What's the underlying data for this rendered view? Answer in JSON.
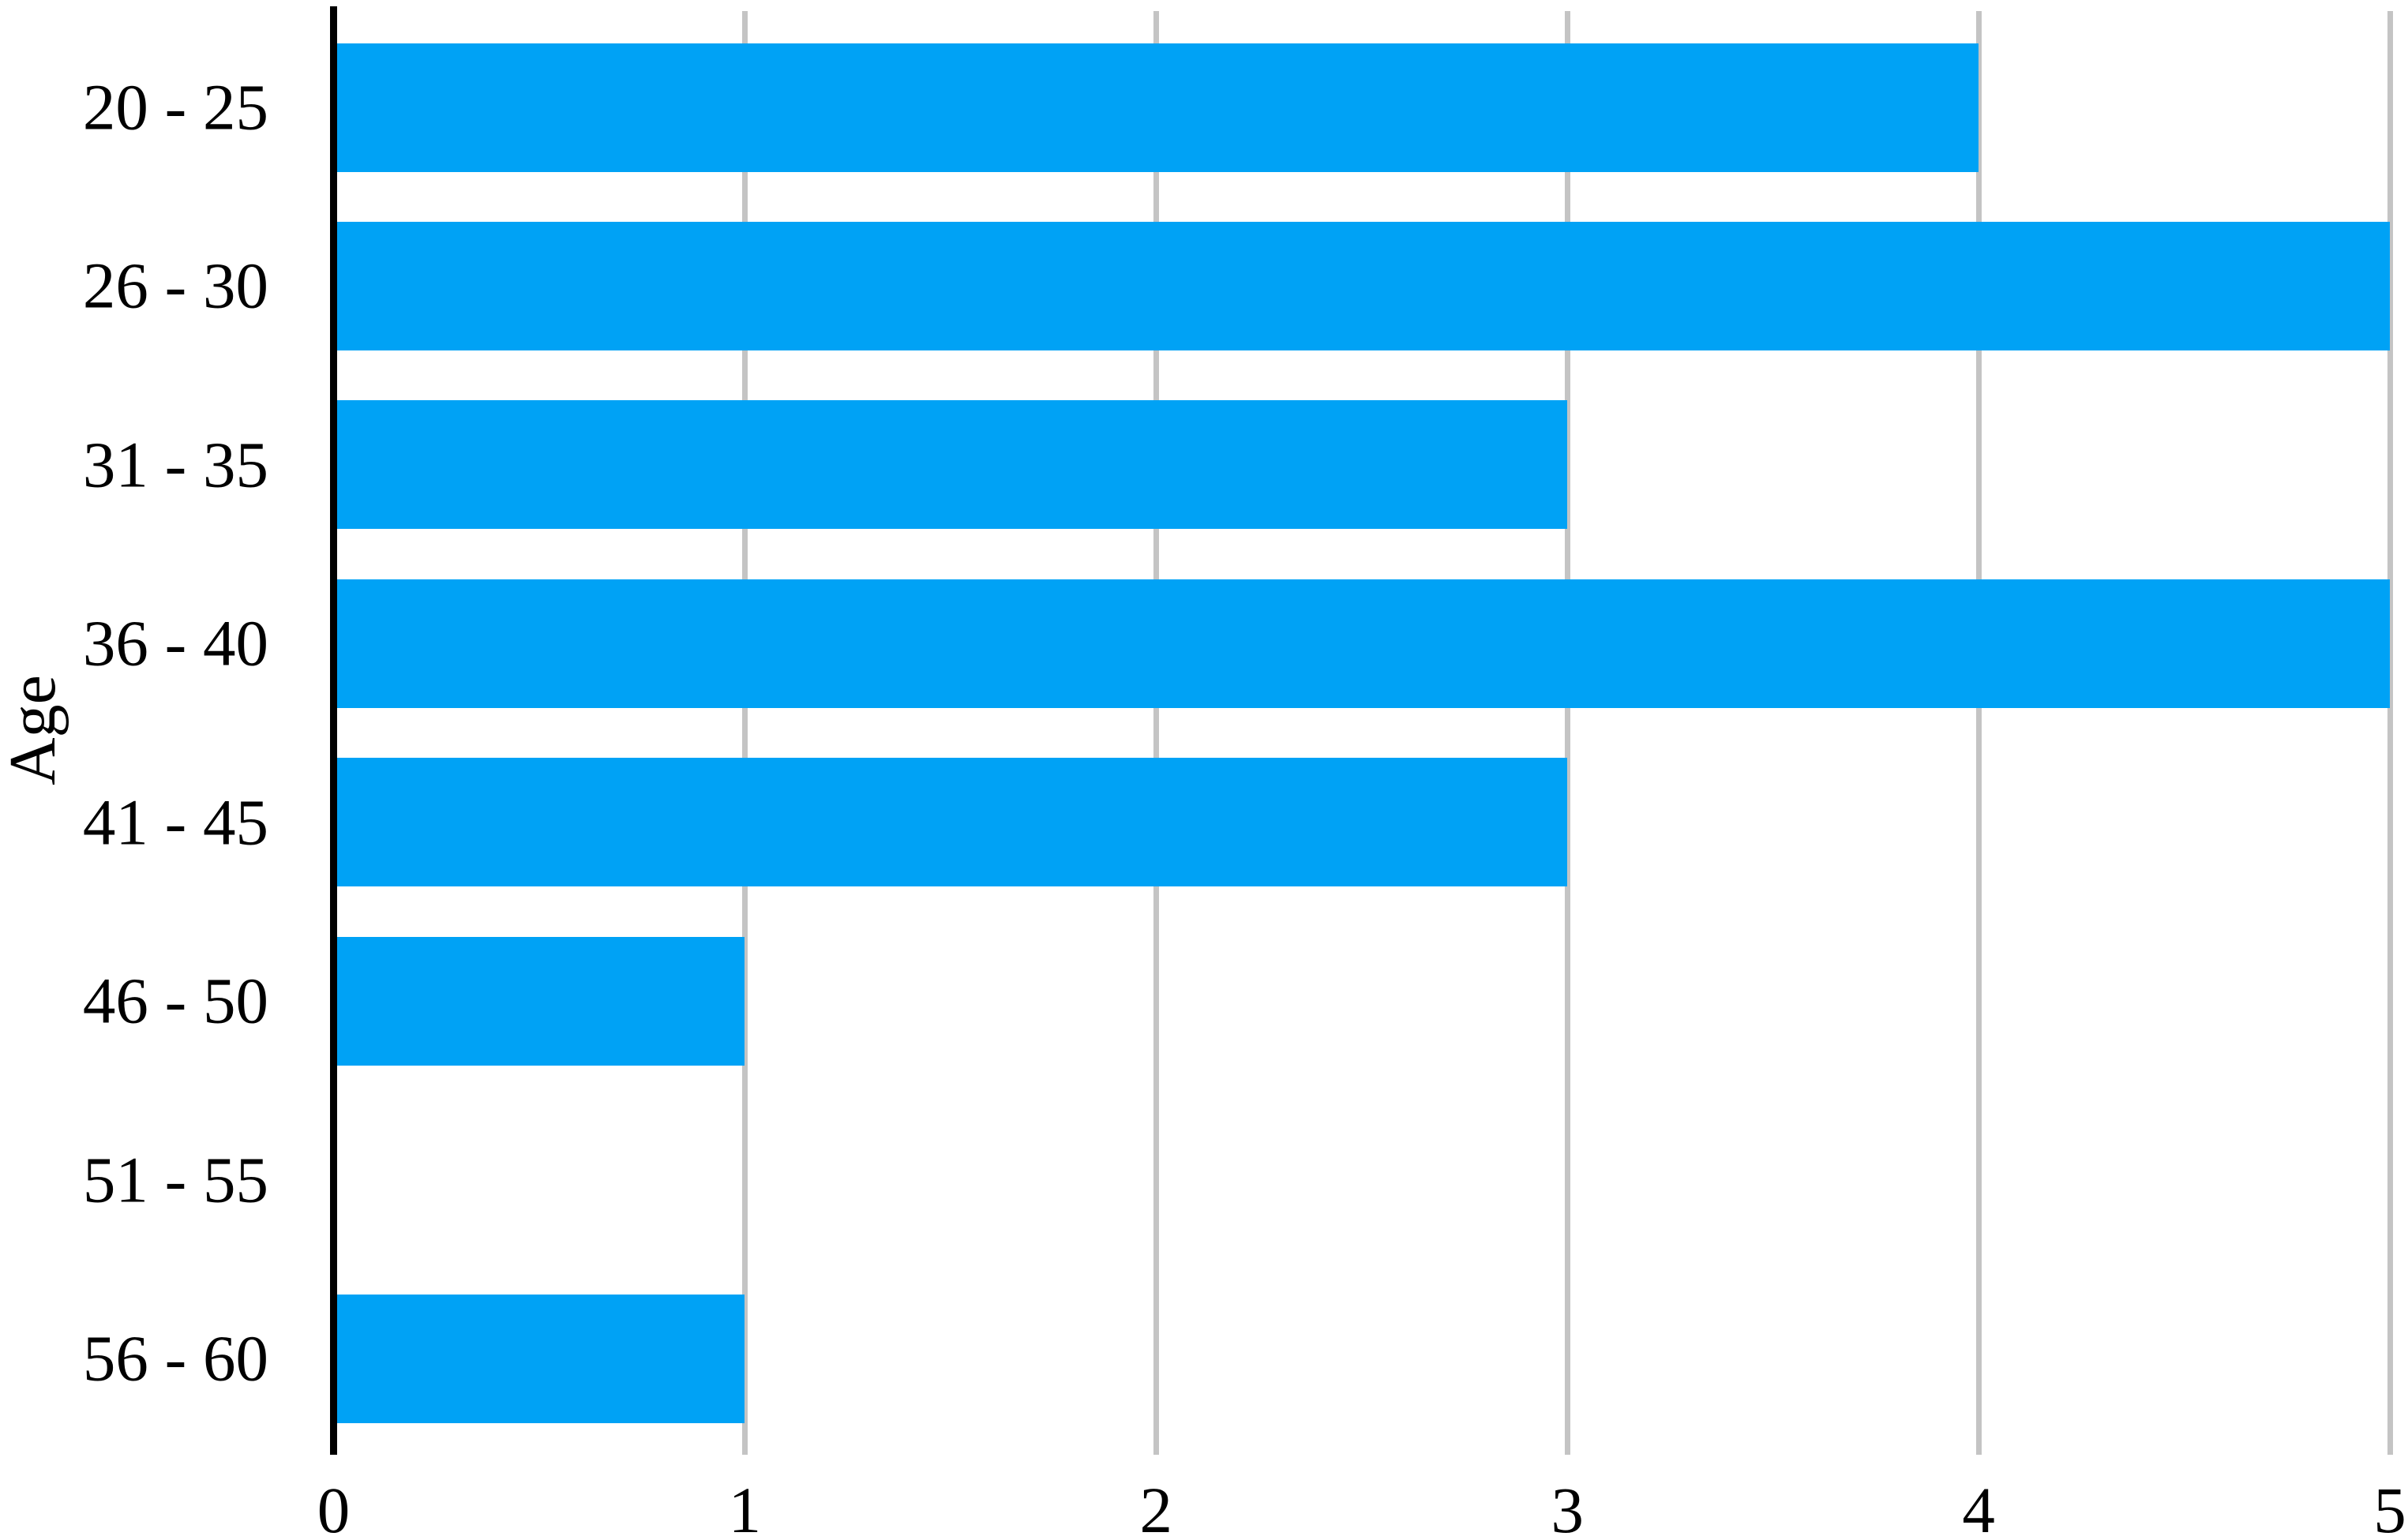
{
  "chart_data": {
    "type": "bar",
    "orientation": "horizontal",
    "title": "",
    "xlabel": "",
    "ylabel": "Age",
    "categories": [
      "20 - 25",
      "26 - 30",
      "31 - 35",
      "36 - 40",
      "41 - 45",
      "46 - 50",
      "51 - 55",
      "56 - 60"
    ],
    "values": [
      4,
      5,
      3,
      5,
      3,
      1,
      0,
      1
    ],
    "xlim": [
      0,
      5
    ],
    "xticks": [
      "0",
      "1",
      "2",
      "3",
      "4",
      "5"
    ],
    "grid": true,
    "legend": false,
    "bar_color": "#00a2f5",
    "gridline_color": "#c4c4c4",
    "axis_color": "#000000",
    "text_color": "#000000"
  }
}
